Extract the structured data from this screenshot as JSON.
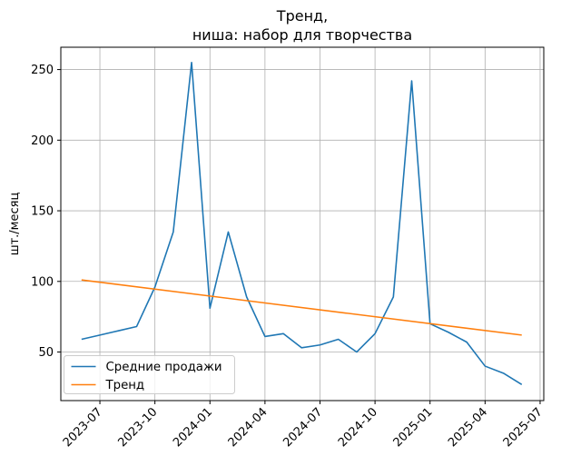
{
  "window": {
    "background": "#ffffff"
  },
  "chart_data": {
    "type": "line",
    "title": "Тренд,\nниша: набор для творчества",
    "xlabel": "",
    "ylabel": "шт./месяц",
    "grid": true,
    "grid_color": "#b0b0b0",
    "legend_position": "lower left",
    "x_tick_labels": [
      "2023-07",
      "2023-10",
      "2024-01",
      "2024-04",
      "2024-07",
      "2024-10",
      "2025-01",
      "2025-04",
      "2025-07"
    ],
    "y_ticks": [
      50,
      100,
      150,
      200,
      250
    ],
    "xlim_index": [
      -1.13,
      25.2
    ],
    "ylim": [
      15.6,
      265.8
    ],
    "x_base_month": "2023-06",
    "series": [
      {
        "name": "Средние продажи",
        "color": "#1f77b4",
        "months": [
          "2023-06",
          "2023-07",
          "2023-08",
          "2023-09",
          "2023-10",
          "2023-11",
          "2023-12",
          "2024-01",
          "2024-02",
          "2024-03",
          "2024-04",
          "2024-05",
          "2024-06",
          "2024-07",
          "2024-08",
          "2024-09",
          "2024-10",
          "2024-11",
          "2024-12",
          "2025-01",
          "2025-02",
          "2025-03",
          "2025-04",
          "2025-05",
          "2025-06"
        ],
        "values": [
          59,
          62,
          65,
          68,
          96,
          135,
          255,
          81,
          135,
          89,
          61,
          63,
          53,
          55,
          59,
          50,
          63,
          89,
          242,
          70,
          64,
          57,
          40,
          35,
          27
        ]
      },
      {
        "name": "Тренд",
        "color": "#ff7f0e",
        "months": [
          "2023-06",
          "2025-06"
        ],
        "values": [
          101,
          62
        ]
      }
    ]
  }
}
